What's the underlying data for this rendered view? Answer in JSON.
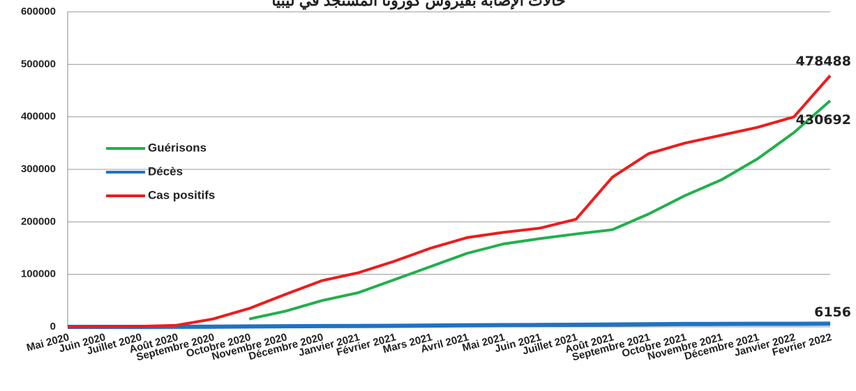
{
  "chart_data": {
    "type": "line",
    "title": "حالات الإصابة بفيروس كورونا المستجد في ليبيا",
    "categories": [
      "Mai 2020",
      "Juin 2020",
      "Juillet 2020",
      "Août 2020",
      "Septembre 2020",
      "Octobre 2020",
      "Novembre 2020",
      "Décembre 2020",
      "Janvier 2021",
      "Février 2021",
      "Mars 2021",
      "Avril 2021",
      "Mai 2021",
      "Juin 2021",
      "Juillet 2021",
      "Août 2021",
      "Septembre 2021",
      "Octobre 2021",
      "Novembre 2021",
      "Décembre 2021",
      "Janvier 2022",
      "Fevrier 2022"
    ],
    "series": [
      {
        "name": "Guérisons",
        "color": "#22b04c",
        "values": [
          null,
          null,
          null,
          null,
          null,
          15000,
          30000,
          50000,
          65000,
          90000,
          115000,
          140000,
          158000,
          168000,
          177000,
          185000,
          215000,
          250000,
          280000,
          320000,
          370000,
          430692
        ]
      },
      {
        "name": "Décès",
        "color": "#1f72c4",
        "values": [
          0,
          20,
          40,
          100,
          300,
          800,
          1200,
          1500,
          1700,
          2000,
          2500,
          3000,
          3300,
          3600,
          4000,
          4500,
          5000,
          5400,
          5600,
          5800,
          5900,
          6156
        ]
      },
      {
        "name": "Cas positifs",
        "color": "#ee1c1c",
        "values": [
          0,
          500,
          1000,
          3000,
          15000,
          35000,
          62000,
          88000,
          103000,
          125000,
          150000,
          170000,
          180000,
          188000,
          205000,
          285000,
          330000,
          350000,
          365000,
          380000,
          400000,
          478488
        ]
      }
    ],
    "ylim": [
      0,
      600000
    ],
    "yticks": [
      0,
      100000,
      200000,
      300000,
      400000,
      500000,
      600000
    ],
    "grid": true,
    "legend": "left"
  }
}
